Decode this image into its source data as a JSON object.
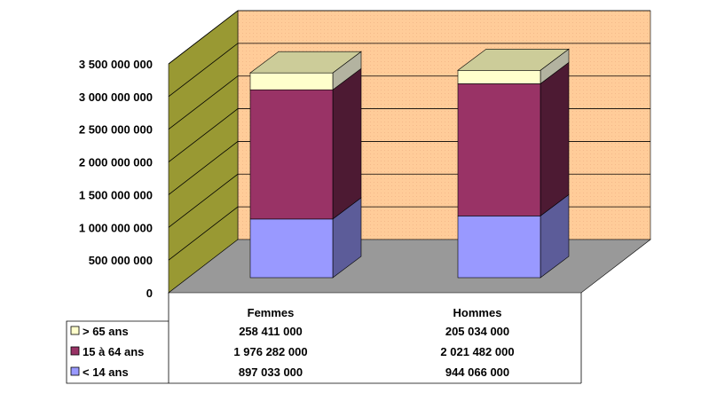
{
  "chart_data": {
    "type": "bar",
    "stacked": true,
    "three_d": true,
    "categories": [
      "Femmes",
      "Hommes"
    ],
    "series": [
      {
        "name": "< 14 ans",
        "values": [
          897033000,
          944066000
        ],
        "color": "#9999FF",
        "labels": [
          "897 033 000",
          "944 066 000"
        ]
      },
      {
        "name": "15 à 64 ans",
        "values": [
          1976282000,
          2021482000
        ],
        "color": "#993366",
        "labels": [
          "1 976 282 000",
          "2 021 482 000"
        ]
      },
      {
        "name": "> 65 ans",
        "values": [
          258411000,
          205034000
        ],
        "color": "#FFFFCC",
        "labels": [
          "258 411 000",
          "205 034 000"
        ]
      }
    ],
    "yticks": [
      "0",
      "500 000 000",
      "1 000 000 000",
      "1 500 000 000",
      "2 000 000 000",
      "2 500 000 000",
      "3 000 000 000",
      "3 500 000 000"
    ],
    "ylim": [
      0,
      3500000000
    ],
    "grid": true,
    "legend": "data-table",
    "title": "",
    "xlabel": "",
    "ylabel": ""
  }
}
